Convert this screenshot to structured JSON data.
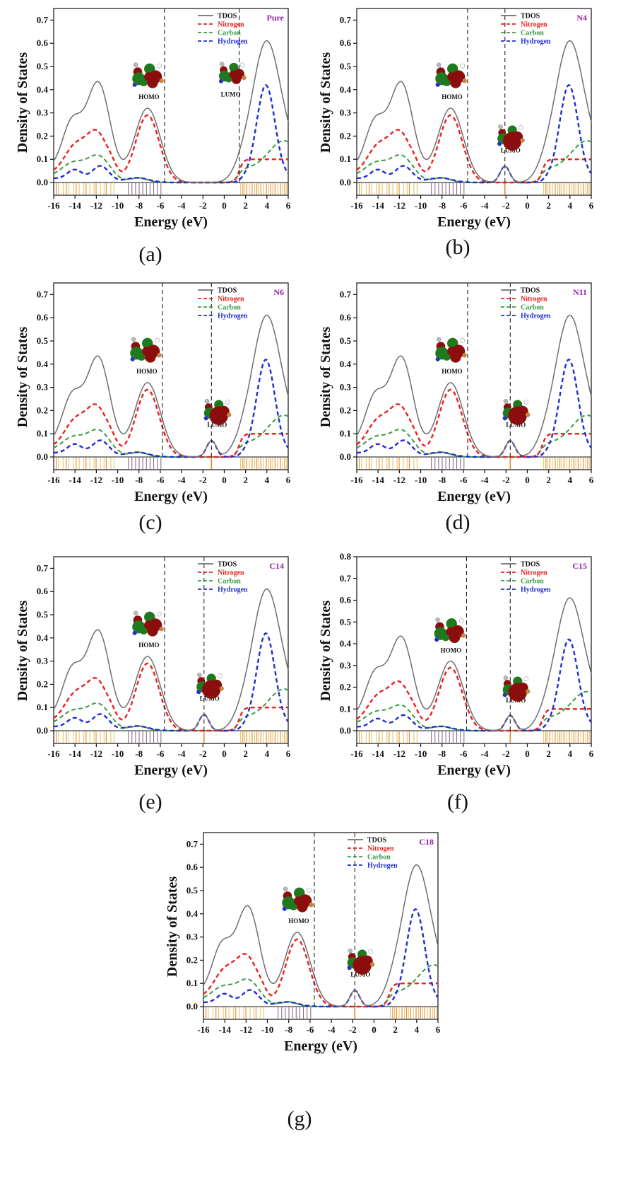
{
  "colors": {
    "tdos": "#6e6e6e",
    "nitrogen": "#e8221e",
    "carbon": "#3a9a45",
    "hydrogen": "#1f2ed0",
    "tag": "#9a23b0",
    "orbital_red": "#8c0d0d",
    "orbital_green": "#1f7a1f",
    "stick_yellow": "#e9c46a",
    "stick_orange": "#e08a2c",
    "stick_purple": "#8e6d8a"
  },
  "common": {
    "xlabel": "Energy (eV)",
    "ylabel": "Density of States",
    "xticks": [
      -16,
      -14,
      -12,
      -10,
      -8,
      -6,
      -4,
      -2,
      0,
      2,
      4,
      6
    ],
    "legend": [
      "TDOS",
      "Nitrogen",
      "Carbon",
      "Hydrogen"
    ],
    "homo_label": "HOMO",
    "lumo_label": "LUMO"
  },
  "chart_data": [
    {
      "id": "a",
      "type": "line",
      "caption": "(a)",
      "tag": "Pure",
      "xlim": [
        -16,
        6
      ],
      "ylim": [
        0,
        0.75
      ],
      "yticks": [
        0.0,
        0.1,
        0.2,
        0.3,
        0.4,
        0.5,
        0.6,
        0.7
      ],
      "homo": -5.6,
      "lumo": 1.4,
      "lumo_peak": 0
    },
    {
      "id": "b",
      "type": "line",
      "caption": "(b)",
      "tag": "N4",
      "xlim": [
        -16,
        6
      ],
      "ylim": [
        0,
        0.75
      ],
      "yticks": [
        0.0,
        0.1,
        0.2,
        0.3,
        0.4,
        0.5,
        0.6,
        0.7
      ],
      "homo": -5.6,
      "lumo": -2.1,
      "lumo_peak": 0.07
    },
    {
      "id": "c",
      "type": "line",
      "caption": "(c)",
      "tag": "N6",
      "xlim": [
        -16,
        6
      ],
      "ylim": [
        0,
        0.75
      ],
      "yticks": [
        0.0,
        0.1,
        0.2,
        0.3,
        0.4,
        0.5,
        0.6,
        0.7
      ],
      "homo": -5.8,
      "lumo": -1.2,
      "lumo_peak": 0.07
    },
    {
      "id": "d",
      "type": "line",
      "caption": "(d)",
      "tag": "N11",
      "xlim": [
        -16,
        6
      ],
      "ylim": [
        0,
        0.75
      ],
      "yticks": [
        0.0,
        0.1,
        0.2,
        0.3,
        0.4,
        0.5,
        0.6,
        0.7
      ],
      "homo": -5.6,
      "lumo": -1.6,
      "lumo_peak": 0.07
    },
    {
      "id": "e",
      "type": "line",
      "caption": "(e)",
      "tag": "C14",
      "xlim": [
        -16,
        6
      ],
      "ylim": [
        0,
        0.75
      ],
      "yticks": [
        0.0,
        0.1,
        0.2,
        0.3,
        0.4,
        0.5,
        0.6,
        0.7
      ],
      "homo": -5.6,
      "lumo": -1.9,
      "lumo_peak": 0.07
    },
    {
      "id": "f",
      "type": "line",
      "caption": "(f)",
      "tag": "C15",
      "xlim": [
        -16,
        6
      ],
      "ylim": [
        0,
        0.8
      ],
      "yticks": [
        0.0,
        0.1,
        0.2,
        0.3,
        0.4,
        0.5,
        0.6,
        0.7,
        0.8
      ],
      "homo": -5.7,
      "lumo": -1.6,
      "lumo_peak": 0.07
    },
    {
      "id": "g",
      "type": "line",
      "caption": "(g)",
      "tag": "C18",
      "xlim": [
        -16,
        6
      ],
      "ylim": [
        0,
        0.75
      ],
      "yticks": [
        0.0,
        0.1,
        0.2,
        0.3,
        0.4,
        0.5,
        0.6,
        0.7
      ],
      "homo": -5.6,
      "lumo": -1.8,
      "lumo_peak": 0.07
    }
  ]
}
